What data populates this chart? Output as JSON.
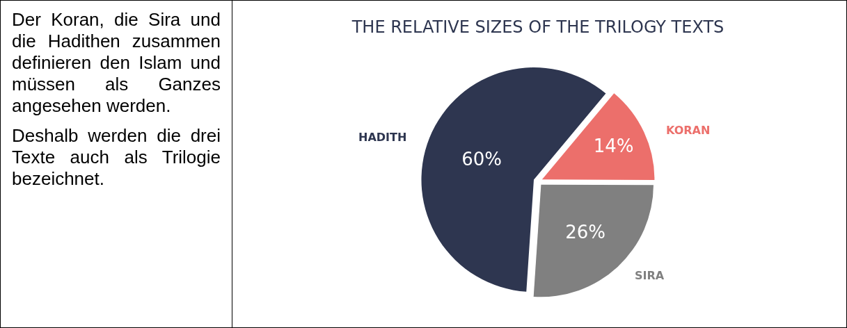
{
  "chart_data": [
    {
      "type": "other",
      "annotations": [
        "Der Koran, die Sira und die Hadithen zusammen definieren den Islam und müssen als Ganzes angesehen werden.",
        "Deshalb werden die drei Texte auch als Trilogie bezeichnet."
      ]
    },
    {
      "type": "pie",
      "title": "THE RELATIVE SIZES OF THE TRILOGY TEXTS",
      "categories": [
        "KORAN",
        "SIRA",
        "HADITH"
      ],
      "values": [
        14,
        26,
        60
      ],
      "value_labels": [
        "14%",
        "26%",
        "60%"
      ],
      "colors": [
        "#ec6f6b",
        "#808080",
        "#2e3650"
      ],
      "legend": false
    }
  ]
}
